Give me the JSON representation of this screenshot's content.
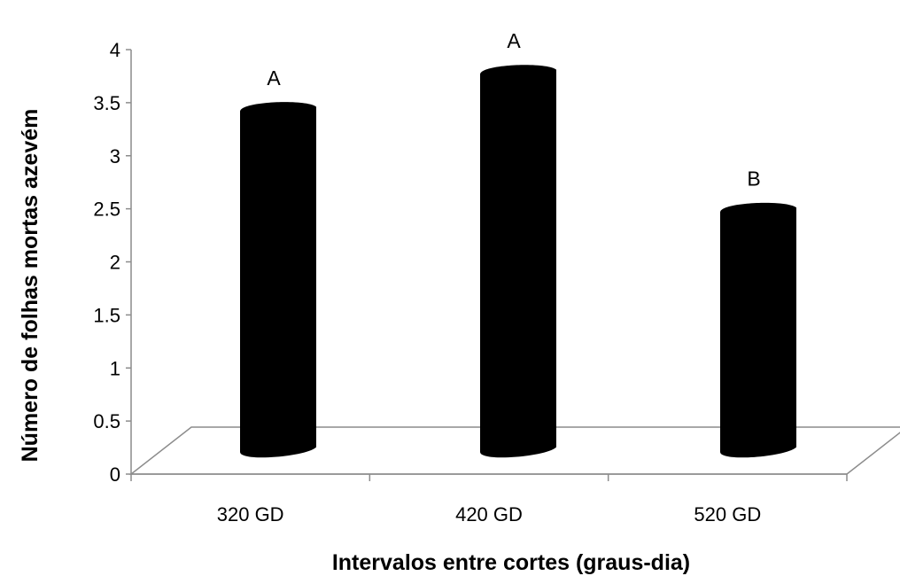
{
  "chart_data": {
    "type": "bar",
    "title": "",
    "xlabel": "Intervalos entre cortes (graus-dia)",
    "ylabel": "Número de folhas mortas azevém",
    "categories": [
      "320 GD",
      "420 GD",
      "520 GD"
    ],
    "values": [
      3.5,
      3.85,
      2.55
    ],
    "annotations": [
      "A",
      "A",
      "B"
    ],
    "ylim": [
      0,
      4
    ],
    "yticks": [
      "0",
      "0.5",
      "1",
      "1.5",
      "2",
      "2.5",
      "3",
      "3.5",
      "4"
    ],
    "grid": false,
    "legend": "none",
    "bar_color": "#000000",
    "axis_color": "#8c8c8c"
  }
}
